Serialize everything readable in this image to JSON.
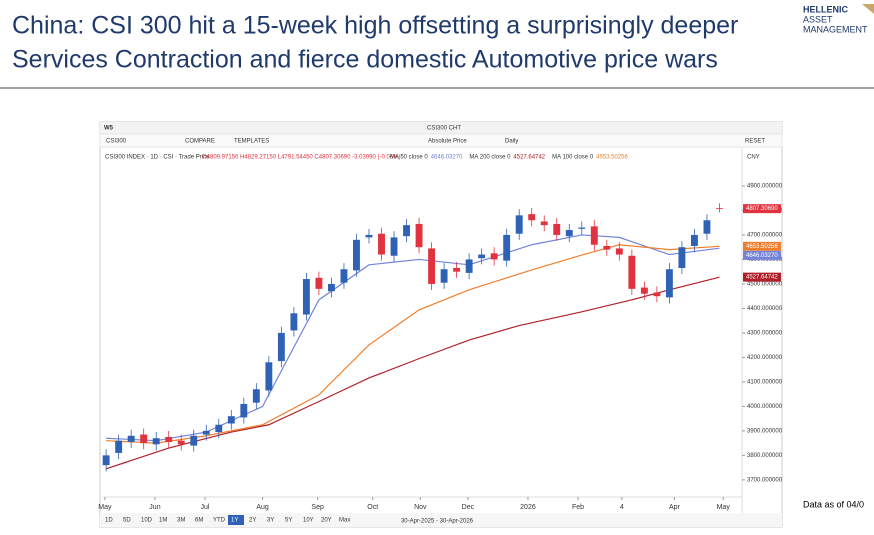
{
  "header": {
    "title_lines": [
      "China: CSI 300 hit a 15-week high offsetting a surprisingly deeper",
      "Services Contraction and fierce domestic Automotive price wars"
    ],
    "logo": [
      "HELLENIC",
      "ASSET",
      "MANAGEMENT"
    ],
    "note": "Data as of 04/0"
  },
  "toolbar": {
    "top": [
      "W5",
      "CSI300",
      "COMPARE",
      "TEMPLATES",
      "CSI300 CHT",
      "Absolute Price",
      "Daily",
      "RESET",
      "CNY"
    ],
    "legend_title": "CSI300 INDEX · 1D · CSI · Trade Price",
    "ohlc": "O4809.97150 H4829.27150 L4791.54450 C4807.30690 -3.03990 (-0.06%)",
    "ranges": [
      "1D",
      "5D",
      "10D",
      "1M",
      "3M",
      "6M",
      "YTD",
      "1Y",
      "2Y",
      "3Y",
      "5Y",
      "10Y",
      "20Y",
      "Max"
    ],
    "active_range": "1Y",
    "date_range": "30-Apr-2025 - 30-Apr-2026"
  },
  "chart_data": {
    "type": "candlestick",
    "grid": false,
    "xlim": [
      -0.25,
      50.8
    ],
    "ylim": [
      3630,
      5055
    ],
    "yticks": [
      {
        "value": 3700,
        "label": "3700.000000"
      },
      {
        "value": 3800,
        "label": "3800.000000"
      },
      {
        "value": 3900,
        "label": "3900.000000"
      },
      {
        "value": 4000,
        "label": "4000.000000"
      },
      {
        "value": 4100,
        "label": "4100.000000"
      },
      {
        "value": 4200,
        "label": "4200.000000"
      },
      {
        "value": 4300,
        "label": "4300.000000"
      },
      {
        "value": 4400,
        "label": "4400.000000"
      },
      {
        "value": 4500,
        "label": "4500.000000"
      },
      {
        "value": 4600,
        "label": "4600.000000"
      },
      {
        "value": 4700,
        "label": "4700.000000"
      },
      {
        "value": 4800,
        "label": "4800.000000"
      },
      {
        "value": 4900,
        "label": "4900.000000"
      }
    ],
    "xticks": [
      {
        "value": -0.1,
        "label": "May"
      },
      {
        "value": 3.9,
        "label": "Jun"
      },
      {
        "value": 7.9,
        "label": "Jul"
      },
      {
        "value": 12.5,
        "label": "Aug"
      },
      {
        "value": 16.9,
        "label": "Sep"
      },
      {
        "value": 21.3,
        "label": "Oct"
      },
      {
        "value": 25.1,
        "label": "Nov"
      },
      {
        "value": 28.9,
        "label": "Dec"
      },
      {
        "value": 33.7,
        "label": "2026"
      },
      {
        "value": 37.7,
        "label": "Feb"
      },
      {
        "value": 41.2,
        "label": "4"
      },
      {
        "value": 45.4,
        "label": "Apr"
      },
      {
        "value": 49.3,
        "label": "May"
      }
    ],
    "up_color": "#2f62b5",
    "down_color": "#e0323f",
    "open": [
      3760,
      3810,
      3855,
      3885,
      3845,
      3875,
      3860,
      3840,
      3885,
      3895,
      3930,
      3955,
      4015,
      4065,
      4185,
      4310,
      4375,
      4525,
      4470,
      4505,
      4555,
      4690,
      4705,
      4615,
      4695,
      4745,
      4645,
      4505,
      4565,
      4545,
      4605,
      4625,
      4595,
      4705,
      4785,
      4755,
      4745,
      4695,
      4725,
      4735,
      4655,
      4645,
      4615,
      4485,
      4465,
      4445,
      4565,
      4655,
      4705,
      4809.9715
    ],
    "high": [
      3825,
      3885,
      3905,
      3910,
      3895,
      3900,
      3885,
      3905,
      3925,
      3950,
      3985,
      4035,
      4095,
      4205,
      4325,
      4405,
      4545,
      4550,
      4525,
      4585,
      4705,
      4725,
      4730,
      4715,
      4765,
      4770,
      4670,
      4585,
      4590,
      4625,
      4645,
      4650,
      4725,
      4805,
      4810,
      4780,
      4770,
      4745,
      4755,
      4760,
      4680,
      4670,
      4640,
      4510,
      4490,
      4585,
      4675,
      4725,
      4785,
      4829.2715
    ],
    "low": [
      3735,
      3785,
      3830,
      3825,
      3820,
      3830,
      3820,
      3815,
      3860,
      3870,
      3905,
      3930,
      3990,
      4040,
      4160,
      4285,
      4350,
      4455,
      4445,
      4480,
      4530,
      4665,
      4595,
      4590,
      4670,
      4625,
      4475,
      4480,
      4525,
      4520,
      4580,
      4575,
      4570,
      4680,
      4735,
      4715,
      4675,
      4670,
      4700,
      4635,
      4615,
      4595,
      4455,
      4435,
      4425,
      4420,
      4540,
      4630,
      4680,
      4791.5445
    ],
    "close": [
      3800,
      3860,
      3880,
      3850,
      3870,
      3855,
      3845,
      3880,
      3900,
      3925,
      3960,
      4010,
      4070,
      4180,
      4300,
      4380,
      4520,
      4480,
      4500,
      4560,
      4680,
      4700,
      4620,
      4690,
      4740,
      4650,
      4500,
      4560,
      4550,
      4600,
      4620,
      4600,
      4700,
      4780,
      4760,
      4740,
      4700,
      4720,
      4730,
      4660,
      4640,
      4620,
      4480,
      4460,
      4450,
      4560,
      4650,
      4700,
      4760,
      4807.3069
    ],
    "last_close_label": "4807.30690",
    "series": [
      {
        "name": "MA 50 close 0",
        "color": "#7383dc",
        "x": [
          0,
          4,
          8,
          12.5,
          17,
          21,
          25,
          29,
          34,
          38,
          41,
          45,
          49
        ],
        "values": [
          3870,
          3860,
          3895,
          4000,
          4435,
          4578,
          4600,
          4578,
          4660,
          4700,
          4690,
          4620,
          4646.0327
        ],
        "last_label": "4646.03270"
      },
      {
        "name": "MA 200 close 0",
        "color": "#b0202a",
        "x": [
          0,
          5,
          10,
          13,
          17,
          21,
          25,
          29,
          33,
          38,
          42,
          45,
          49
        ],
        "values": [
          3745,
          3830,
          3895,
          3925,
          4020,
          4116,
          4195,
          4271,
          4330,
          4386,
          4435,
          4476,
          4527.64742
        ],
        "last_label": "4527.64742"
      },
      {
        "name": "MA 100 close 0",
        "color": "#f07f2d",
        "x": [
          0,
          4,
          8,
          12.5,
          17,
          21,
          25,
          29,
          34,
          38,
          41,
          45,
          49
        ],
        "values": [
          3860,
          3850,
          3880,
          3925,
          4047,
          4251,
          4394,
          4476,
          4557,
          4618,
          4660,
          4640,
          4653.50256
        ],
        "last_label": "4653.50256"
      }
    ]
  }
}
